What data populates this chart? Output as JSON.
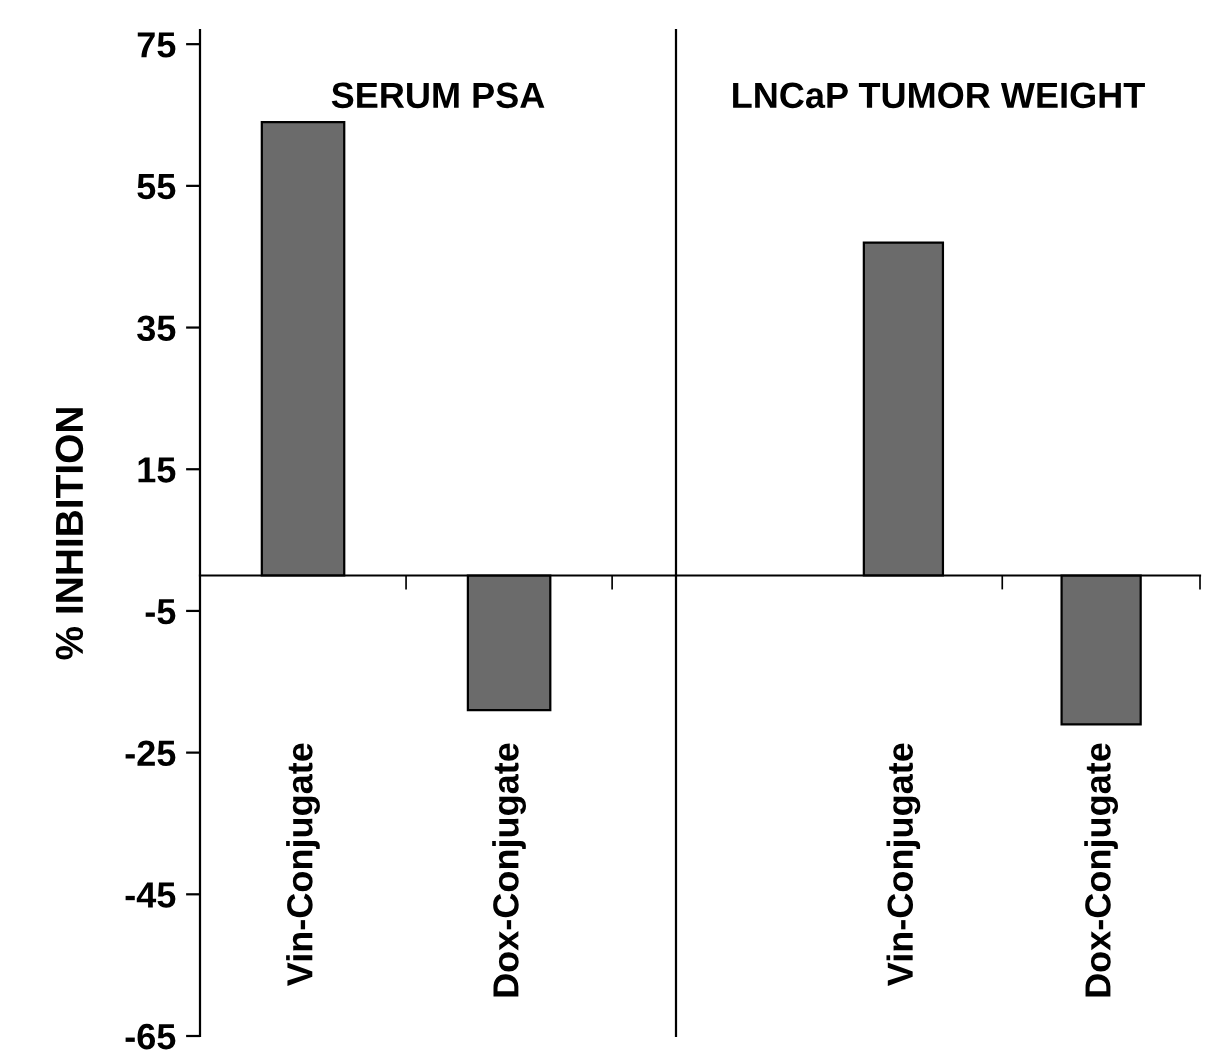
{
  "chart_data": [
    {
      "type": "bar",
      "title": "SERUM PSA",
      "ylabel": "% INHIBITION",
      "categories": [
        "Vin-Conjugate",
        "Dox-Conjugate"
      ],
      "values": [
        64,
        -19
      ],
      "color": "#6b6b6b",
      "ylim": [
        -65,
        77
      ],
      "yticks": [
        -65,
        -45,
        -25,
        -5,
        15,
        35,
        55,
        75
      ],
      "grid": false,
      "legend": false
    },
    {
      "type": "bar",
      "title": "LNCaP TUMOR WEIGHT",
      "categories": [
        "Vin-Conjugate",
        "Dox-Conjugate"
      ],
      "values": [
        47,
        -21
      ],
      "color": "#6b6b6b",
      "ylim": [
        -65,
        77
      ],
      "yticks": [
        -65,
        -45,
        -25,
        -5,
        15,
        35,
        55,
        75
      ],
      "tick_labels": "x",
      "grid": false,
      "legend": false
    }
  ]
}
